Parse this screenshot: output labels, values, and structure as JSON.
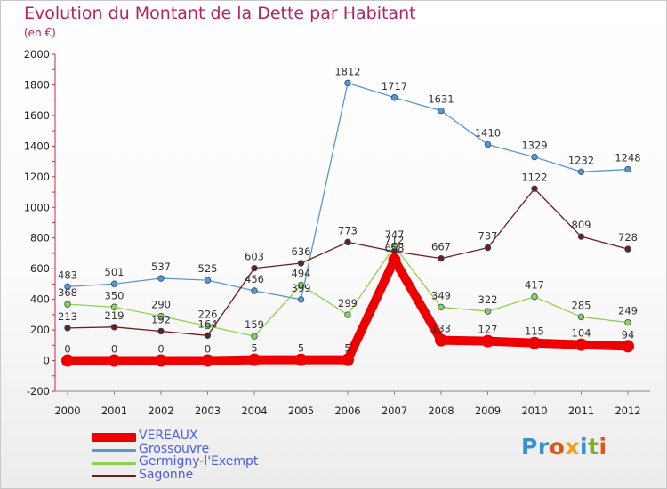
{
  "header": {
    "title": "Evolution du Montant de la Dette par Habitant",
    "subtitle": "(en €)"
  },
  "logo": {
    "text": "Proxiti",
    "letter_colors": [
      "#3a8fd0",
      "#3a8fd0",
      "#e0541a",
      "#f0a020",
      "#3a8fd0",
      "#7ab02a",
      "#e0541a"
    ]
  },
  "chart_data": {
    "type": "line",
    "x": [
      "2000",
      "2001",
      "2002",
      "2003",
      "2004",
      "2005",
      "2006",
      "2007",
      "2008",
      "2009",
      "2010",
      "2011",
      "2012"
    ],
    "ylim": [
      -200,
      2000
    ],
    "yticks": [
      -200,
      0,
      200,
      400,
      600,
      800,
      1000,
      1200,
      1400,
      1600,
      1800,
      2000
    ],
    "grid": false,
    "legend_position": "bottom-left",
    "series": [
      {
        "name": "VEREAUX",
        "color": "#ee0000",
        "values": [
          0,
          0,
          0,
          0,
          5,
          5,
          5,
          658,
          133,
          127,
          115,
          104,
          94
        ]
      },
      {
        "name": "Grossouvre",
        "color": "#5a96d2",
        "values": [
          483,
          501,
          537,
          525,
          456,
          399,
          1812,
          1717,
          1631,
          1410,
          1329,
          1232,
          1248
        ]
      },
      {
        "name": "Germigny-l'Exempt",
        "color": "#90d050",
        "values": [
          368,
          350,
          290,
          226,
          159,
          494,
          299,
          747,
          349,
          322,
          417,
          285,
          249
        ]
      },
      {
        "name": "Sagonne",
        "color": "#6e1c1c",
        "values": [
          213,
          219,
          192,
          164,
          603,
          636,
          773,
          712,
          667,
          737,
          1122,
          809,
          728
        ]
      }
    ]
  }
}
